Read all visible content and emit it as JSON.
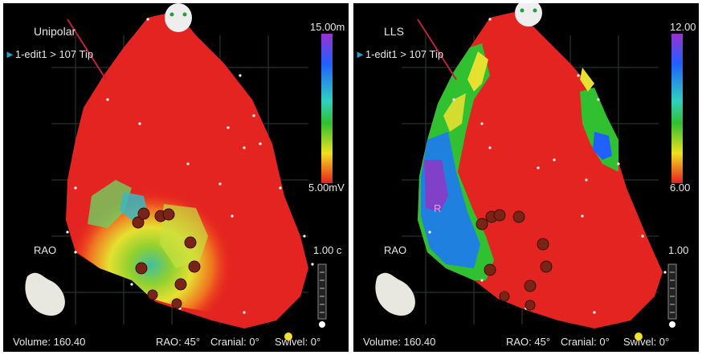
{
  "left": {
    "map_label": "Unipolar",
    "point_label": "1-edit1 > 107 Tip",
    "scale_max": "15.00m",
    "scale_min": "5.00mV",
    "view": "RAO",
    "distance": "1.00 c",
    "volume_label": "Volume: 160.40",
    "rao_label": "RAO: 45°",
    "cranial_label": "Cranial: 0°",
    "swivel_label": "Swivel: 0°"
  },
  "right": {
    "map_label": "LLS",
    "point_label": "1-edit1 > 107 Tip",
    "scale_max": "12.00",
    "scale_min": "6.00",
    "view": "RAO",
    "distance": "1.00",
    "region_marker": "R",
    "volume_label": "Volume: 160.40",
    "rao_label": "RAO: 45°",
    "cranial_label": "Cranial: 0°",
    "swivel_label": "Swivel: 0°"
  },
  "colors": {
    "background": "#000000",
    "scale_top": "#9b30d0",
    "scale_mid": "#2060ff",
    "scale_green": "#30c030",
    "scale_yellow": "#f0e020",
    "scale_bottom": "#e82020",
    "lesion": "#8a2a1a"
  }
}
